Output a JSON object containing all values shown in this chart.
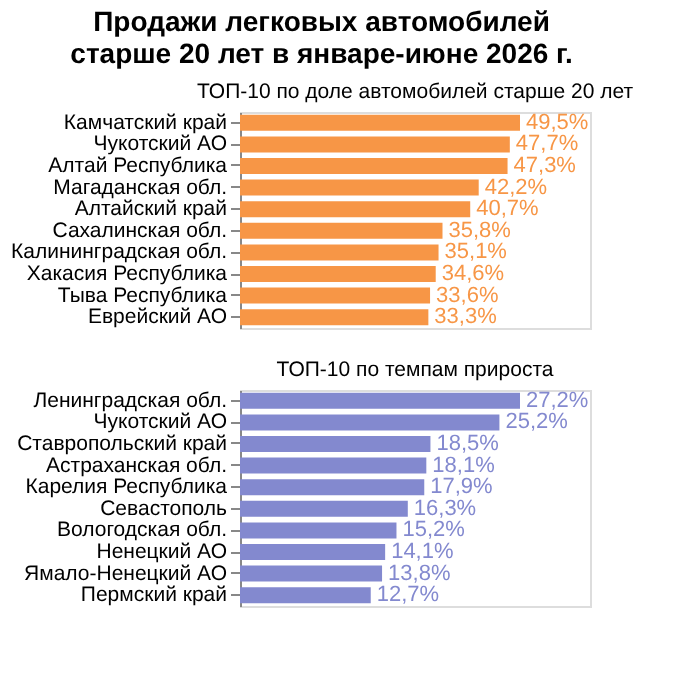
{
  "chart_data": [
    {
      "type": "bar",
      "orientation": "horizontal",
      "title": "Продажи легковых автомобилей\nстарше 20 лет в январе-июне 2026 г.",
      "subtitle": "ТОП-10 по доле автомобилей старше 20 лет",
      "tick_labels": "y",
      "color": "#f79646",
      "categories": [
        "Камчатский край",
        "Чукотский АО",
        "Алтай Республика",
        "Магаданская обл.",
        "Алтайский край",
        "Сахалинская обл.",
        "Калининградская обл.",
        "Хакасия Республика",
        "Тыва Республика",
        "Еврейский АО"
      ],
      "values": [
        49.5,
        47.7,
        47.3,
        42.2,
        40.7,
        35.8,
        35.1,
        34.6,
        33.6,
        33.3
      ],
      "value_labels": [
        "49,5%",
        "47,7%",
        "47,3%",
        "42,2%",
        "40,7%",
        "35,8%",
        "35,1%",
        "34,6%",
        "33,6%",
        "33,3%"
      ]
    },
    {
      "type": "bar",
      "orientation": "horizontal",
      "title": "ТОП-10 по темпам прироста",
      "tick_labels": "y",
      "color": "#8389cf",
      "categories": [
        "Ленинградская обл.",
        "Чукотский АО",
        "Ставропольский край",
        "Астраханская обл.",
        "Карелия Республика",
        "Севастополь",
        "Вологодская обл.",
        "Ненецкий АО",
        "Ямало-Ненецкий АО",
        "Пермский край"
      ],
      "values": [
        27.2,
        25.2,
        18.5,
        18.1,
        17.9,
        16.3,
        15.2,
        14.1,
        13.8,
        12.7
      ],
      "value_labels": [
        "27,2%",
        "25,2%",
        "18,5%",
        "18,1%",
        "17,9%",
        "16,3%",
        "15,2%",
        "14,1%",
        "13,8%",
        "12,7%"
      ]
    }
  ]
}
